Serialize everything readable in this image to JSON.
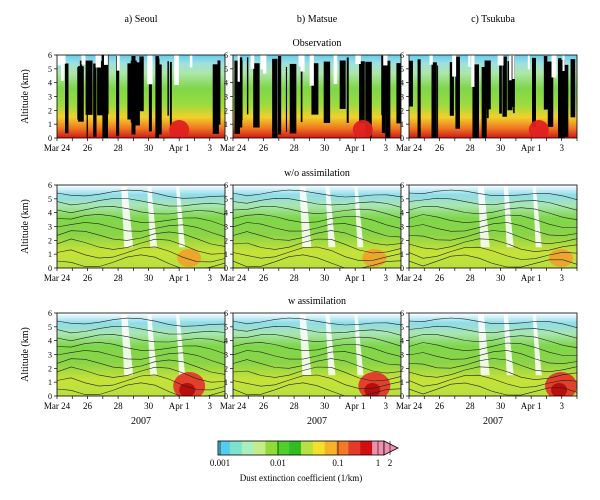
{
  "columns": [
    {
      "title": "a) Seoul"
    },
    {
      "title": "b) Matsue"
    },
    {
      "title": "c) Tsukuba"
    }
  ],
  "rows": [
    {
      "title": "Observation"
    },
    {
      "title": "w/o assimilation"
    },
    {
      "title": "w assimilation"
    }
  ],
  "chart_data": {
    "type": "heatmap",
    "panel_grid": "3 rows x 3 columns",
    "ylabel": "Altitude (km)",
    "y_ticks": [
      "0",
      "1",
      "2",
      "3",
      "4",
      "5",
      "6"
    ],
    "ylim": [
      0,
      6
    ],
    "x_ticks": [
      "Mar 24",
      "26",
      "28",
      "30",
      "Apr 1",
      "3"
    ],
    "x_range": [
      "2007-03-24",
      "2007-04-04"
    ],
    "xlabel_year": "2007",
    "colorbar": {
      "label": "Dust extinction coefficient (1/km)",
      "ticks": [
        "0.001",
        "0.01",
        "0.1",
        "1",
        "2"
      ],
      "scale": "log",
      "position": "bottom-center",
      "colors": [
        "#55ccee",
        "#7fe0d0",
        "#aaeebb",
        "#c4ec8a",
        "#8edb3a",
        "#4fcf2a",
        "#33bb22",
        "#b8e040",
        "#f2e02a",
        "#f7b22a",
        "#f07a2a",
        "#e43a2a",
        "#d01010",
        "#f090b0"
      ]
    },
    "contour_lines": "only in model panels (w/o assimilation, w assimilation)"
  }
}
